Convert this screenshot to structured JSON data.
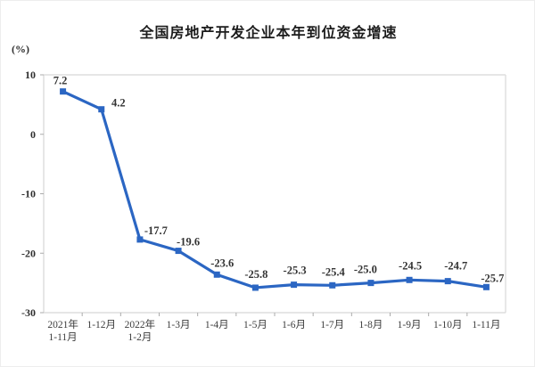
{
  "chart_data": {
    "type": "line",
    "title": "全国房地产开发企业本年到位资金增速",
    "unit": "(%)",
    "categories": [
      [
        "2021年",
        "1-11月"
      ],
      [
        "1-12月"
      ],
      [
        "2022年",
        "1-2月"
      ],
      [
        "1-3月"
      ],
      [
        "1-4月"
      ],
      [
        "1-5月"
      ],
      [
        "1-6月"
      ],
      [
        "1-7月"
      ],
      [
        "1-8月"
      ],
      [
        "1-9月"
      ],
      [
        "1-10月"
      ],
      [
        "1-11月"
      ]
    ],
    "values": [
      7.2,
      4.2,
      -17.7,
      -19.6,
      -23.6,
      -25.8,
      -25.3,
      -25.4,
      -25.0,
      -24.5,
      -24.7,
      -25.7
    ],
    "data_labels": [
      "7.2",
      "4.2",
      "-17.7",
      "-19.6",
      "-23.6",
      "-25.8",
      "-25.3",
      "-25.4",
      "-25.0",
      "-24.5",
      "-24.7",
      "-25.7"
    ],
    "y_ticks": [
      10,
      0,
      -10,
      -20,
      -30
    ],
    "ylim": [
      -30,
      10
    ],
    "xlabel": "",
    "ylabel": "(%)",
    "grid": false,
    "legend_position": "none",
    "line_color": "#2B66C3",
    "marker": "square",
    "label_color": "#333333",
    "axis_border_color": "#d6d6d6",
    "tick_color": "#ababab"
  }
}
